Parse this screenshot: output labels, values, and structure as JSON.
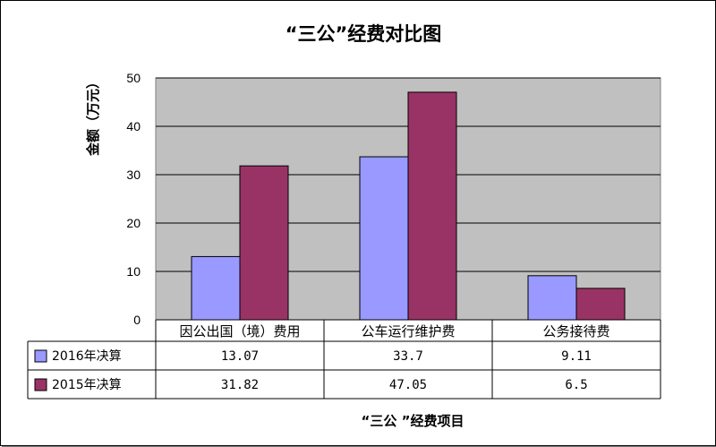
{
  "chart_data": {
    "type": "bar",
    "title": "“三公”经费对比图",
    "xlabel": "“三公 ”经费项目",
    "ylabel": "金额（万元）",
    "categories": [
      "因公出国（境）费用",
      "公车运行维护费",
      "公务接待费"
    ],
    "series": [
      {
        "name": "2016年决算",
        "values": [
          13.07,
          33.7,
          9.11
        ],
        "labels": [
          "13.07",
          "33.7",
          "9.11"
        ],
        "color": "#9999ff"
      },
      {
        "name": "2015年决算",
        "values": [
          31.82,
          47.05,
          6.5
        ],
        "labels": [
          "31.82",
          "47.05",
          "6.5"
        ],
        "color": "#993366"
      }
    ],
    "yticks": [
      "0",
      "10",
      "20",
      "30",
      "40",
      "50"
    ],
    "ylim": [
      0,
      50
    ],
    "grid": true,
    "plot_background": "#c0c0c0",
    "data_table": true
  }
}
